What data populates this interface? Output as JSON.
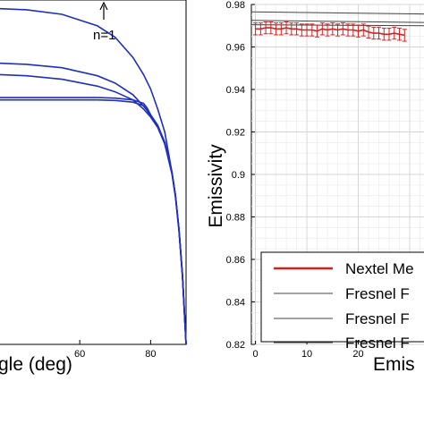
{
  "chart_data": [
    {
      "type": "line",
      "xlabel": "gle (deg)",
      "ylabel": "",
      "xlim": [
        37,
        90
      ],
      "xticks": [
        "60",
        "80"
      ],
      "annotation": "n=1",
      "series": [
        {
          "color": "#1f2fbf",
          "x": [
            37,
            45,
            55,
            65,
            70,
            75,
            78,
            80,
            82,
            84,
            86,
            87,
            88,
            89,
            90
          ],
          "y": [
            0.985,
            0.983,
            0.975,
            0.955,
            0.935,
            0.9,
            0.87,
            0.845,
            0.81,
            0.77,
            0.7,
            0.66,
            0.6,
            0.52,
            0.4
          ]
        },
        {
          "color": "#1f2fbf",
          "x": [
            37,
            45,
            55,
            65,
            70,
            75,
            78,
            80,
            82,
            84,
            86,
            87,
            88,
            89,
            90
          ],
          "y": [
            0.89,
            0.888,
            0.882,
            0.868,
            0.855,
            0.835,
            0.815,
            0.8,
            0.78,
            0.752,
            0.7,
            0.66,
            0.6,
            0.52,
            0.4
          ]
        },
        {
          "color": "#1f2fbf",
          "x": [
            37,
            45,
            55,
            65,
            70,
            75,
            78,
            80,
            82,
            84,
            86,
            87,
            88,
            89,
            90
          ],
          "y": [
            0.87,
            0.868,
            0.862,
            0.85,
            0.84,
            0.826,
            0.81,
            0.796,
            0.778,
            0.75,
            0.7,
            0.66,
            0.6,
            0.52,
            0.4
          ]
        },
        {
          "color": "#1f2fbf",
          "x": [
            37,
            45,
            55,
            65,
            70,
            75,
            78,
            79,
            80,
            82,
            84,
            86,
            87,
            88,
            89,
            90
          ],
          "y": [
            0.83,
            0.83,
            0.83,
            0.83,
            0.829,
            0.826,
            0.82,
            0.812,
            0.8,
            0.782,
            0.752,
            0.7,
            0.66,
            0.6,
            0.52,
            0.4
          ]
        },
        {
          "color": "#1f2fbf",
          "x": [
            37,
            45,
            55,
            65,
            70,
            75,
            78,
            79,
            80,
            82,
            84,
            86,
            87,
            88,
            89,
            90
          ],
          "y": [
            0.826,
            0.826,
            0.826,
            0.826,
            0.825,
            0.822,
            0.816,
            0.808,
            0.797,
            0.779,
            0.749,
            0.697,
            0.657,
            0.597,
            0.517,
            0.4
          ]
        }
      ]
    },
    {
      "type": "line",
      "xlabel": "Emis",
      "ylabel": "Emissivity",
      "xlim": [
        -0.8,
        34
      ],
      "ylim": [
        0.82,
        0.98
      ],
      "xticks": [
        "0",
        "10",
        "20"
      ],
      "yticks": [
        "0.82",
        "0.84",
        "0.86",
        "0.88",
        "0.9",
        "0.92",
        "0.94",
        "0.96",
        "0.98"
      ],
      "grid": true,
      "legend_position": "bottom-right",
      "series": [
        {
          "name": "Nextel Me",
          "color": "#d42020",
          "errorbars": true,
          "x": [
            0,
            1,
            2,
            3,
            4,
            5,
            6,
            7,
            8,
            9,
            10,
            11,
            12,
            13,
            14,
            15,
            16,
            17,
            18,
            19,
            20,
            21,
            22,
            23,
            24,
            25,
            26,
            27,
            28,
            29
          ],
          "y": [
            0.9685,
            0.9685,
            0.969,
            0.969,
            0.9685,
            0.9685,
            0.969,
            0.9685,
            0.9685,
            0.968,
            0.968,
            0.968,
            0.9675,
            0.9685,
            0.968,
            0.9685,
            0.968,
            0.9685,
            0.968,
            0.968,
            0.9675,
            0.968,
            0.967,
            0.9665,
            0.9665,
            0.966,
            0.966,
            0.9665,
            0.966,
            0.9655
          ],
          "err": [
            0.0028,
            0.0028,
            0.0028,
            0.0028,
            0.0028,
            0.0028,
            0.0028,
            0.0028,
            0.0028,
            0.0028,
            0.0028,
            0.0028,
            0.0028,
            0.0028,
            0.0028,
            0.0028,
            0.0028,
            0.0028,
            0.0028,
            0.0028,
            0.0028,
            0.0028,
            0.0028,
            0.0028,
            0.0028,
            0.0028,
            0.0028,
            0.0028,
            0.0028,
            0.0028
          ]
        },
        {
          "name": "Fresnel F",
          "color": "#444444",
          "x": [
            -0.8,
            34
          ],
          "y": [
            0.9765,
            0.9755
          ]
        },
        {
          "name": "Fresnel F",
          "color": "#444444",
          "x": [
            -0.8,
            34
          ],
          "y": [
            0.9725,
            0.9715
          ]
        },
        {
          "name": "Fresnel F",
          "color": "#444444",
          "x": [
            -0.8,
            34
          ],
          "y": [
            0.9705,
            0.97
          ]
        }
      ]
    }
  ]
}
